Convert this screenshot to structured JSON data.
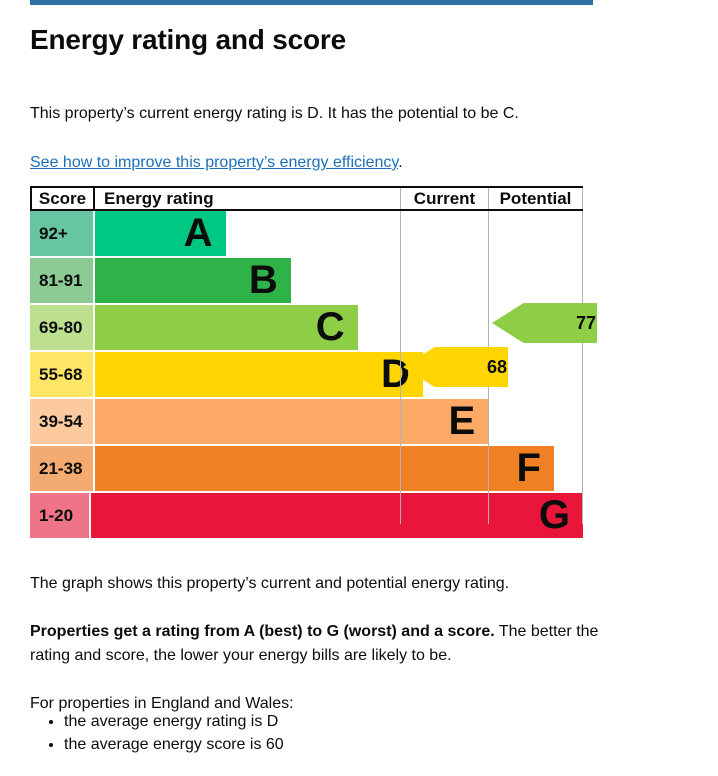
{
  "page": {
    "heading": "Energy rating and score",
    "intro": "This property’s current energy rating is D. It has the potential to be C.",
    "link_text": "See how to improve this property’s energy efficiency",
    "link_suffix": ".",
    "caption": "The graph shows this property’s current and potential energy rating.",
    "explain_bold": "Properties get a rating from A (best) to G (worst) and a score.",
    "explain_rest": " The better the rating and score, the lower your energy bills are likely to be.",
    "region_line": "For properties in England and Wales:",
    "bullets": [
      "the average energy rating is D",
      "the average energy score is 60"
    ]
  },
  "colors": {
    "accent_bar": "#2f6fa6",
    "link": "#1d70b8",
    "text": "#0b0c0c",
    "grid": "#b1b4b6"
  },
  "chart_data": {
    "type": "bar",
    "title": "Energy rating and score",
    "columns": [
      "Score",
      "Energy rating",
      "Current",
      "Potential"
    ],
    "bands": [
      {
        "letter": "A",
        "score_range": "92+",
        "color": "#00c781",
        "tint": "#68c5a1",
        "bar_width": "23.6%"
      },
      {
        "letter": "B",
        "score_range": "81-91",
        "color": "#2eb348",
        "tint": "#8bca92",
        "bar_width": "35.4%"
      },
      {
        "letter": "C",
        "score_range": "69-80",
        "color": "#8dce46",
        "tint": "#bcdf90",
        "bar_width": "47.5%"
      },
      {
        "letter": "D",
        "score_range": "55-68",
        "color": "#ffd500",
        "tint": "#ffe566",
        "bar_width": "59.3%"
      },
      {
        "letter": "E",
        "score_range": "39-54",
        "color": "#fcaa65",
        "tint": "#fcca9e",
        "bar_width": "71.1%"
      },
      {
        "letter": "F",
        "score_range": "21-38",
        "color": "#ef8023",
        "tint": "#f4ab72",
        "bar_width": "83.0%"
      },
      {
        "letter": "G",
        "score_range": "1-20",
        "color": "#e9153b",
        "tint": "#ef7488",
        "bar_width": "95.1%"
      }
    ],
    "current": {
      "score": "68",
      "rating": "D",
      "band": "D",
      "color": "#ffd500"
    },
    "potential": {
      "score": "77",
      "rating": "C",
      "band": "C",
      "color": "#8dce46"
    }
  }
}
